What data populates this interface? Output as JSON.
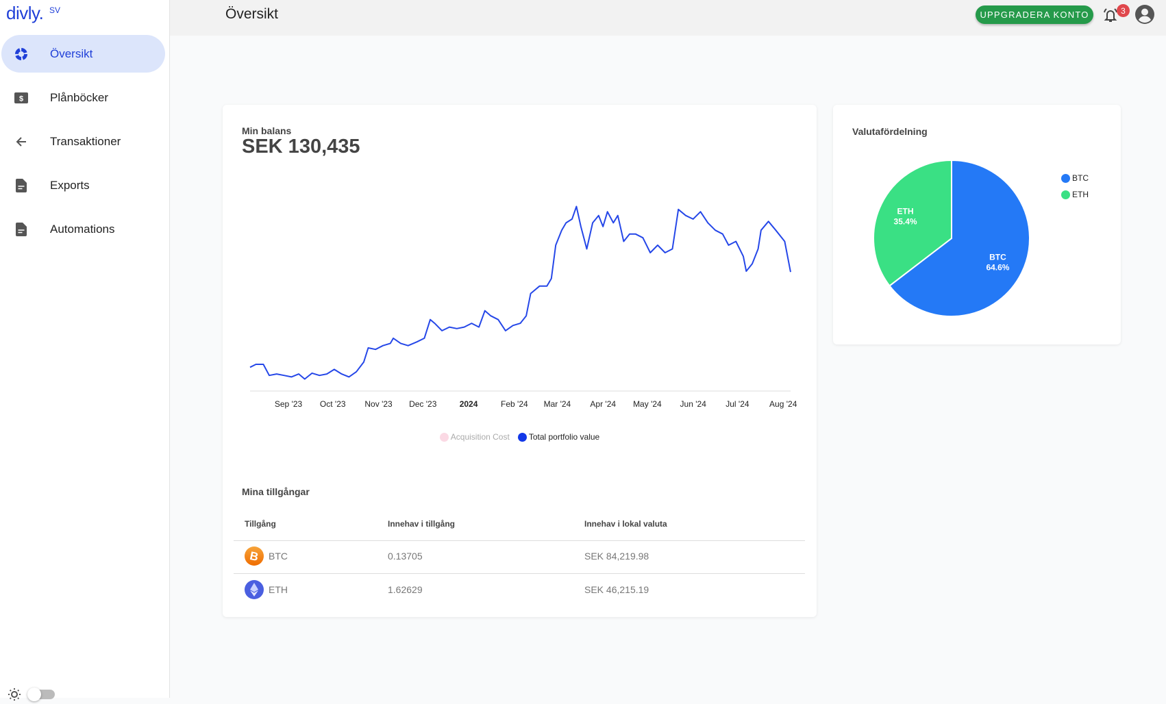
{
  "app": {
    "logo": "divly.",
    "lang": "SV"
  },
  "sidebar": {
    "items": [
      {
        "label": "Översikt",
        "icon": "donut-icon",
        "active": true
      },
      {
        "label": "Plånböcker",
        "icon": "wallet-dollar-icon"
      },
      {
        "label": "Transaktioner",
        "icon": "arrow-left-icon"
      },
      {
        "label": "Exports",
        "icon": "document-icon"
      },
      {
        "label": "Automations",
        "icon": "document-icon"
      }
    ]
  },
  "header": {
    "title": "Översikt",
    "upgrade_label": "UPPGRADERA KONTO",
    "notifications": "3"
  },
  "balance": {
    "label": "Min balans",
    "value": "SEK 130,435"
  },
  "colors": {
    "accent": "#1f3fd8",
    "line": "#2547e8",
    "btc": "#2479f6",
    "eth": "#3ae084",
    "upgrade": "#259a4a"
  },
  "chart_data": {
    "type": "line",
    "title": "Min balans",
    "xlabel": "",
    "ylabel": "",
    "x_unit": "days since 2023-09-01",
    "y_unit": "thousand SEK (estimated)",
    "xlim": [
      -26,
      340
    ],
    "ylim": [
      41.8,
      181.5
    ],
    "grid": false,
    "ticks": [
      {
        "label": "Sep '23",
        "x": 0
      },
      {
        "label": "Oct '23",
        "x": 30
      },
      {
        "label": "Nov '23",
        "x": 61
      },
      {
        "label": "Dec '23",
        "x": 91
      },
      {
        "label": "2024",
        "x": 122,
        "bold": true
      },
      {
        "label": "Feb '24",
        "x": 153
      },
      {
        "label": "Mar '24",
        "x": 182
      },
      {
        "label": "Apr '24",
        "x": 213
      },
      {
        "label": "May '24",
        "x": 243
      },
      {
        "label": "Jun '24",
        "x": 274
      },
      {
        "label": "Jul '24",
        "x": 304
      },
      {
        "label": "Aug '24",
        "x": 335
      }
    ],
    "legend": [
      {
        "name": "Acquisition Cost",
        "color": "#fbd9e4",
        "muted": true
      },
      {
        "name": "Total portfolio value",
        "color": "#1238e8"
      }
    ],
    "legend_position": "bottom",
    "series": [
      {
        "name": "Total portfolio value",
        "x": [
          -26,
          -22,
          -17,
          -13,
          -8,
          -3,
          2,
          7,
          11,
          16,
          21,
          26,
          31,
          36,
          41,
          46,
          51,
          54,
          59,
          64,
          69,
          71,
          76,
          81,
          87,
          92,
          96,
          99,
          104,
          109,
          114,
          119,
          124,
          129,
          133,
          137,
          142,
          147,
          152,
          157,
          161,
          164,
          170,
          175,
          178,
          181,
          185,
          188,
          192,
          195,
          198,
          202,
          206,
          210,
          213,
          216,
          220,
          223,
          227,
          231,
          235,
          240,
          245,
          250,
          255,
          260,
          264,
          269,
          274,
          279,
          284,
          289,
          294,
          298,
          303,
          308,
          310,
          314,
          318,
          320,
          325,
          330,
          336,
          340
        ],
        "y": [
          59.5,
          61.7,
          61.7,
          53.4,
          54.5,
          53.4,
          52.3,
          54.5,
          50.7,
          55.1,
          53.4,
          54.5,
          57.9,
          54.5,
          52.3,
          56.2,
          63.4,
          73.9,
          72.8,
          75.6,
          77.3,
          81.1,
          77.3,
          75.6,
          78.4,
          81.1,
          95.0,
          92.2,
          86.7,
          89.4,
          88.3,
          89.4,
          92.2,
          89.4,
          101.6,
          97.8,
          95.0,
          86.7,
          90.6,
          92.2,
          97.8,
          114.4,
          119.9,
          119.9,
          125.5,
          150.4,
          161.5,
          167.0,
          169.8,
          179.2,
          164.2,
          147.6,
          167.0,
          172.5,
          164.2,
          175.3,
          167.0,
          172.5,
          153.2,
          158.7,
          158.7,
          155.9,
          144.8,
          150.4,
          144.8,
          147.6,
          177.0,
          172.5,
          169.8,
          175.3,
          167.0,
          161.5,
          158.7,
          150.4,
          153.2,
          142.1,
          131.0,
          136.5,
          147.6,
          161.5,
          168.1,
          161.5,
          153.2,
          130.4
        ]
      }
    ]
  },
  "assets": {
    "title": "Mina tillgångar",
    "columns": [
      "Tillgång",
      "Innehav i tillgång",
      "Innehav i lokal valuta"
    ],
    "rows": [
      {
        "symbol": "BTC",
        "amount": "0.13705",
        "value": "SEK 84,219.98",
        "icon": "bitcoin-icon"
      },
      {
        "symbol": "ETH",
        "amount": "1.62629",
        "value": "SEK 46,215.19",
        "icon": "ethereum-icon"
      }
    ]
  },
  "distribution": {
    "title": "Valutafördelning",
    "type": "pie",
    "slices": [
      {
        "name": "BTC",
        "value": 64.6,
        "label": "64.6%",
        "color": "#2479f6"
      },
      {
        "name": "ETH",
        "value": 35.4,
        "label": "35.4%",
        "color": "#3ae084"
      }
    ],
    "legend_position": "right"
  }
}
